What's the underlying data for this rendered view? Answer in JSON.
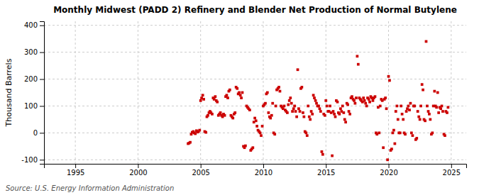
{
  "chart_data": {
    "type": "scatter",
    "title": "Monthly Midwest (PADD 2) Refinery and Blender Net Production of Normal Butylene",
    "y_label": "Thousand Barrels",
    "source": "Source: U.S. Energy Information Administration",
    "color": "#cc0000",
    "marker": "square",
    "grid": true,
    "xlim": [
      1992.5,
      2026.2
    ],
    "ylim": [
      -115,
      415
    ],
    "xticks": [
      1995,
      2000,
      2005,
      2010,
      2015,
      2020,
      2025
    ],
    "yticks": [
      -100,
      0,
      100,
      200,
      300,
      400
    ],
    "x": [
      2004.0,
      2004.08,
      2004.17,
      2004.25,
      2004.33,
      2004.42,
      2004.5,
      2004.58,
      2004.67,
      2004.75,
      2004.83,
      2004.92,
      2005.0,
      2005.08,
      2005.17,
      2005.25,
      2005.33,
      2005.42,
      2005.5,
      2005.58,
      2005.67,
      2005.75,
      2005.83,
      2005.92,
      2006.0,
      2006.08,
      2006.17,
      2006.25,
      2006.33,
      2006.42,
      2006.5,
      2006.58,
      2006.67,
      2006.75,
      2006.83,
      2006.92,
      2007.0,
      2007.08,
      2007.17,
      2007.25,
      2007.33,
      2007.42,
      2007.5,
      2007.58,
      2007.67,
      2007.75,
      2007.83,
      2007.92,
      2008.0,
      2008.08,
      2008.17,
      2008.25,
      2008.33,
      2008.42,
      2008.5,
      2008.58,
      2008.67,
      2008.75,
      2008.83,
      2008.92,
      2009.0,
      2009.08,
      2009.17,
      2009.25,
      2009.33,
      2009.42,
      2009.5,
      2009.58,
      2009.67,
      2009.75,
      2009.83,
      2009.92,
      2010.0,
      2010.08,
      2010.17,
      2010.25,
      2010.33,
      2010.42,
      2010.5,
      2010.58,
      2010.67,
      2010.75,
      2010.83,
      2010.92,
      2011.0,
      2011.08,
      2011.17,
      2011.25,
      2011.33,
      2011.42,
      2011.5,
      2011.58,
      2011.67,
      2011.75,
      2011.83,
      2011.92,
      2012.0,
      2012.08,
      2012.17,
      2012.25,
      2012.33,
      2012.42,
      2012.5,
      2012.58,
      2012.67,
      2012.75,
      2012.83,
      2012.92,
      2013.0,
      2013.08,
      2013.17,
      2013.25,
      2013.33,
      2013.42,
      2013.5,
      2013.58,
      2013.67,
      2013.75,
      2013.83,
      2013.92,
      2014.0,
      2014.08,
      2014.17,
      2014.25,
      2014.33,
      2014.42,
      2014.5,
      2014.58,
      2014.67,
      2014.75,
      2014.83,
      2014.92,
      2015.0,
      2015.08,
      2015.17,
      2015.25,
      2015.33,
      2015.42,
      2015.5,
      2015.58,
      2015.67,
      2015.75,
      2015.83,
      2015.92,
      2016.0,
      2016.08,
      2016.17,
      2016.25,
      2016.33,
      2016.42,
      2016.5,
      2016.58,
      2016.67,
      2016.75,
      2016.83,
      2016.92,
      2017.0,
      2017.08,
      2017.17,
      2017.25,
      2017.33,
      2017.42,
      2017.5,
      2017.58,
      2017.67,
      2017.75,
      2017.83,
      2017.92,
      2018.0,
      2018.08,
      2018.17,
      2018.25,
      2018.33,
      2018.42,
      2018.5,
      2018.58,
      2018.67,
      2018.75,
      2018.83,
      2018.92,
      2019.0,
      2019.08,
      2019.17,
      2019.25,
      2019.33,
      2019.42,
      2019.5,
      2019.58,
      2019.67,
      2019.75,
      2019.83,
      2019.92,
      2020.0,
      2020.08,
      2020.17,
      2020.25,
      2020.33,
      2020.42,
      2020.5,
      2020.58,
      2020.67,
      2020.75,
      2020.83,
      2020.92,
      2021.0,
      2021.08,
      2021.17,
      2021.25,
      2021.33,
      2021.42,
      2021.5,
      2021.58,
      2021.67,
      2021.75,
      2021.83,
      2021.92,
      2022.0,
      2022.08,
      2022.17,
      2022.25,
      2022.33,
      2022.42,
      2022.5,
      2022.58,
      2022.67,
      2022.75,
      2022.83,
      2022.92,
      2023.0,
      2023.08,
      2023.17,
      2023.25,
      2023.33,
      2023.42,
      2023.5,
      2023.58,
      2023.67,
      2023.75,
      2023.83,
      2023.92,
      2024.0,
      2024.08,
      2024.17,
      2024.25,
      2024.33,
      2024.42,
      2024.5,
      2024.58,
      2024.67,
      2024.75
    ],
    "values": [
      -40,
      -38,
      -35,
      -5,
      2,
      5,
      0,
      -3,
      8,
      3,
      5,
      10,
      120,
      130,
      140,
      125,
      5,
      2,
      60,
      65,
      75,
      80,
      75,
      70,
      130,
      125,
      135,
      120,
      115,
      65,
      70,
      75,
      65,
      60,
      70,
      65,
      135,
      140,
      130,
      155,
      160,
      65,
      60,
      55,
      70,
      75,
      170,
      165,
      145,
      150,
      140,
      130,
      150,
      -50,
      -55,
      -48,
      100,
      95,
      90,
      85,
      -65,
      -60,
      -55,
      40,
      55,
      45,
      25,
      10,
      5,
      0,
      -10,
      25,
      100,
      105,
      110,
      145,
      150,
      75,
      60,
      55,
      65,
      110,
      0,
      -5,
      100,
      160,
      165,
      170,
      155,
      100,
      95,
      90,
      100,
      85,
      80,
      75,
      105,
      120,
      130,
      110,
      80,
      90,
      100,
      80,
      60,
      235,
      90,
      80,
      165,
      170,
      75,
      60,
      5,
      0,
      -10,
      100,
      60,
      50,
      80,
      70,
      140,
      130,
      120,
      110,
      100,
      100,
      90,
      80,
      -70,
      -80,
      70,
      65,
      120,
      100,
      80,
      80,
      100,
      75,
      -85,
      80,
      70,
      60,
      120,
      115,
      75,
      70,
      90,
      80,
      100,
      75,
      50,
      40,
      110,
      105,
      80,
      70,
      130,
      135,
      125,
      120,
      110,
      130,
      285,
      255,
      130,
      125,
      120,
      115,
      130,
      120,
      110,
      100,
      130,
      125,
      115,
      135,
      130,
      120,
      130,
      135,
      0,
      -5,
      95,
      0,
      100,
      125,
      120,
      -55,
      125,
      130,
      90,
      -100,
      210,
      195,
      -65,
      -60,
      0,
      10,
      -40,
      80,
      100,
      50,
      0,
      0,
      100,
      70,
      50,
      0,
      -5,
      80,
      90,
      100,
      85,
      110,
      0,
      -10,
      100,
      100,
      -25,
      -20,
      80,
      60,
      50,
      100,
      180,
      160,
      50,
      45,
      340,
      100,
      80,
      70,
      50,
      -5,
      0,
      100,
      155,
      100,
      95,
      150,
      75,
      95,
      90,
      100,
      80,
      -5,
      -10,
      80,
      75,
      95
    ]
  }
}
